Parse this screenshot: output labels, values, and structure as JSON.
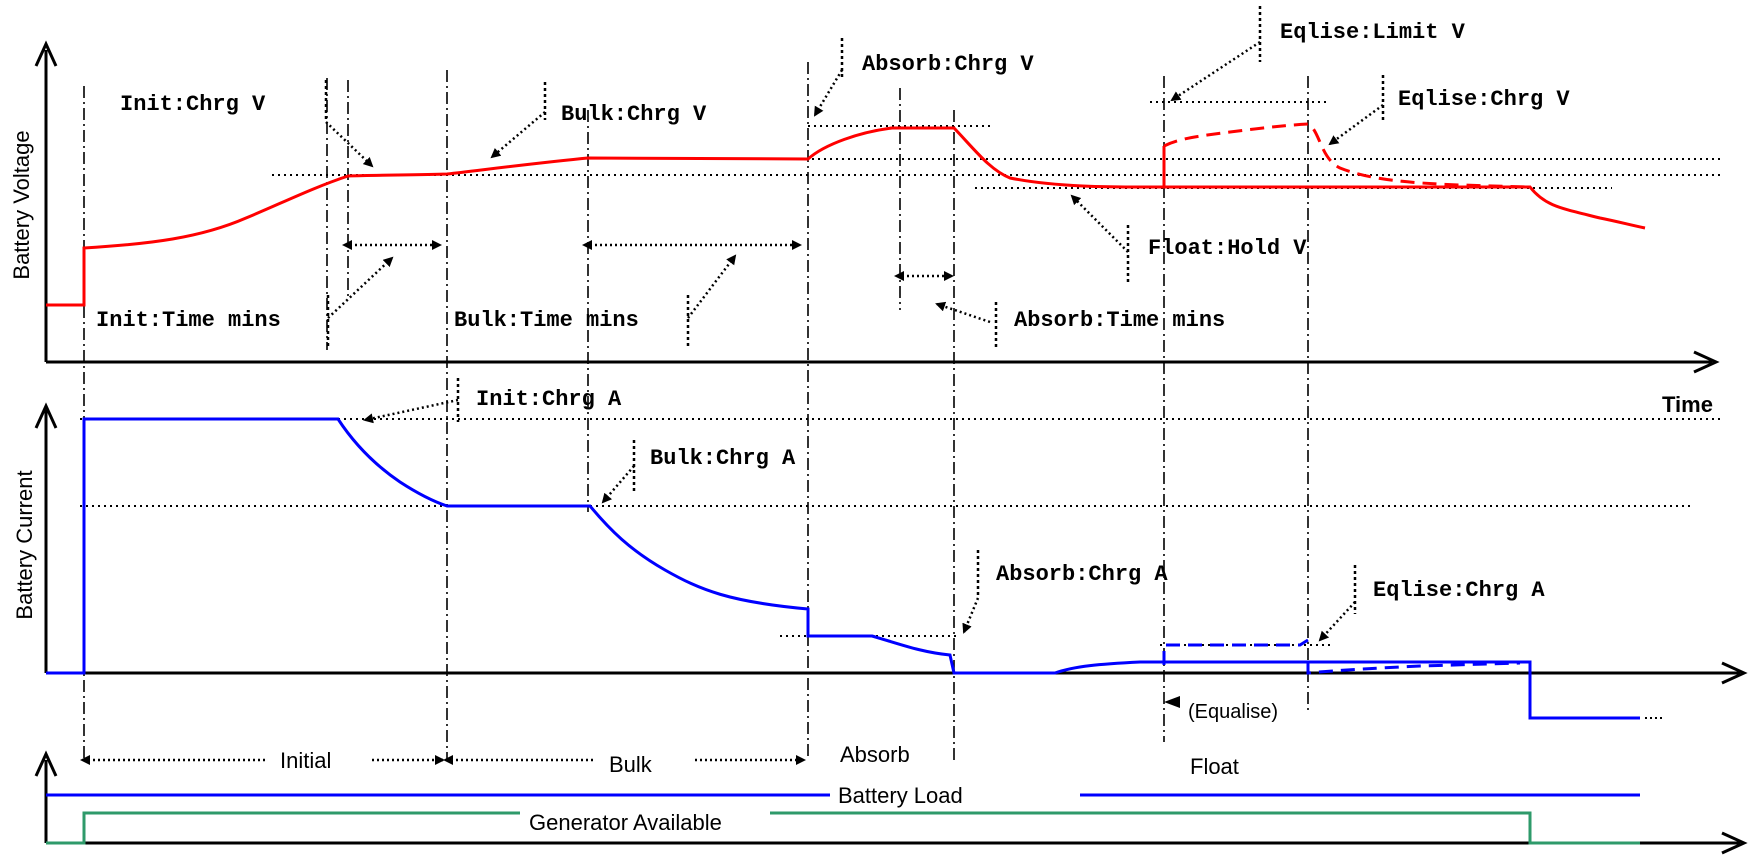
{
  "voltage_chart": {
    "ylabel": "Battery Voltage",
    "xlabel": "Time",
    "labels": {
      "init_chrg_v": "Init:Chrg V",
      "bulk_chrg_v": "Bulk:Chrg V",
      "absorb_chrg_v": "Absorb:Chrg V",
      "eqlise_limit_v": "Eqlise:Limit V",
      "eqlise_chrg_v": "Eqlise:Chrg V",
      "float_hold_v": "Float:Hold V",
      "init_time_mins": "Init:Time mins",
      "bulk_time_mins": "Bulk:Time mins",
      "absorb_time_mins": "Absorb:Time mins"
    }
  },
  "current_chart": {
    "ylabel": "Battery Current",
    "labels": {
      "init_chrg_a": "Init:Chrg A",
      "bulk_chrg_a": "Bulk:Chrg A",
      "absorb_chrg_a": "Absorb:Chrg A",
      "eqlise_chrg_a": "Eqlise:Chrg A",
      "equalise_note": "(Equalise)"
    }
  },
  "stages": {
    "initial": "Initial",
    "bulk": "Bulk",
    "absorb": "Absorb",
    "float": "Float"
  },
  "status": {
    "battery_load": "Battery Load",
    "generator_available": "Generator Available"
  },
  "colors": {
    "voltage": "#ff0000",
    "current": "#0000ff",
    "generator": "#2e9a6a"
  }
}
